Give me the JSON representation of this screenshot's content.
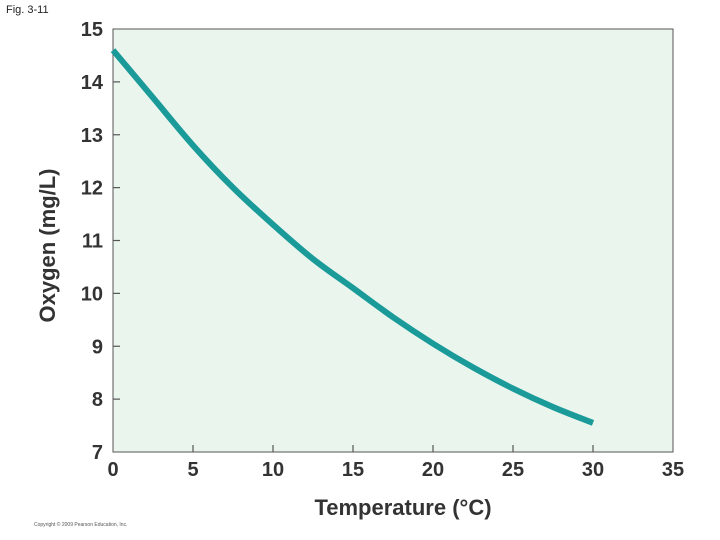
{
  "figure": {
    "label": "Fig. 3-11",
    "copyright": "Copyright © 2009 Pearson Education, Inc."
  },
  "colors": {
    "plot_background": "#eaf5ee",
    "curve": "#1a9a98",
    "axis": "#555555",
    "text": "#333333"
  },
  "chart_data": {
    "type": "line",
    "title": "",
    "xlabel": "Temperature (°C)",
    "ylabel": "Oxygen (mg/L)",
    "xlim": [
      0,
      35
    ],
    "ylim": [
      7,
      15
    ],
    "xticks": [
      0,
      5,
      10,
      15,
      20,
      25,
      30,
      35
    ],
    "yticks": [
      7,
      8,
      9,
      10,
      11,
      12,
      13,
      14,
      15
    ],
    "grid": false,
    "legend": "none",
    "series": [
      {
        "x": [
          0,
          2.5,
          5,
          7.5,
          10,
          12.5,
          15,
          17.5,
          20,
          22.5,
          25,
          27.5,
          30
        ],
        "y": [
          14.6,
          13.7,
          12.8,
          12.0,
          11.3,
          10.65,
          10.1,
          9.55,
          9.05,
          8.6,
          8.2,
          7.85,
          7.55
        ]
      }
    ]
  }
}
